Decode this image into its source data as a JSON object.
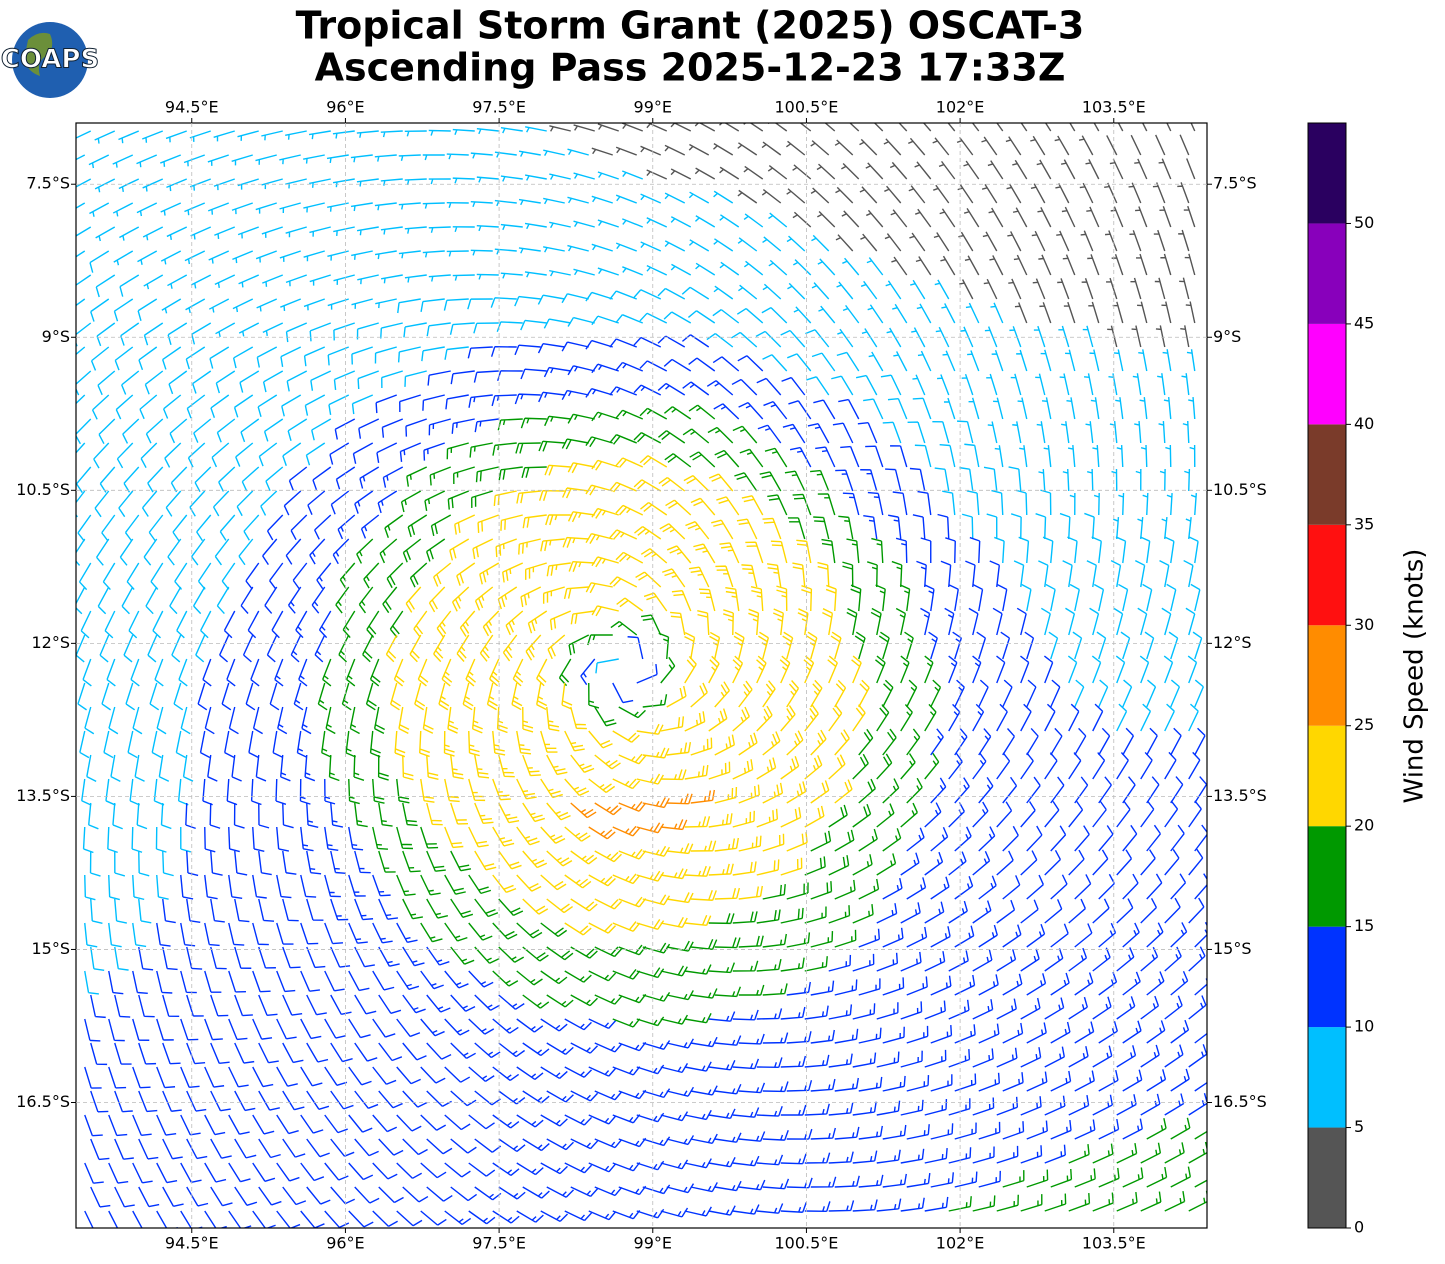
{
  "logo": {
    "text": "COAPS"
  },
  "map": {
    "title": [
      "Tropical Storm Grant (2025) OSCAT-3",
      "Ascending Pass 2025-12-23 17:33Z"
    ],
    "xticks": [
      {
        "value": 94.5,
        "label": "94.5°E"
      },
      {
        "value": 96,
        "label": "96°E"
      },
      {
        "value": 97.5,
        "label": "97.5°E"
      },
      {
        "value": 99,
        "label": "99°E"
      },
      {
        "value": 100.5,
        "label": "100.5°E"
      },
      {
        "value": 102,
        "label": "102°E"
      },
      {
        "value": 103.5,
        "label": "103.5°E"
      }
    ],
    "yticks": [
      {
        "value": -7.5,
        "label": "7.5°S"
      },
      {
        "value": -9,
        "label": "9°S"
      },
      {
        "value": -10.5,
        "label": "10.5°S"
      },
      {
        "value": -12,
        "label": "12°S"
      },
      {
        "value": -13.5,
        "label": "13.5°S"
      },
      {
        "value": -15,
        "label": "15°S"
      },
      {
        "value": -16.5,
        "label": "16.5°S"
      }
    ],
    "xlim": [
      93.37,
      104.41
    ],
    "ylim": [
      -17.73,
      -6.9
    ],
    "grid": true
  },
  "colorbar": {
    "label": "Wind Speed (knots)",
    "lim": [
      0,
      55
    ],
    "ticks": [
      0,
      5,
      10,
      15,
      20,
      25,
      30,
      35,
      40,
      45,
      50
    ],
    "bounds": [
      0,
      5,
      10,
      15,
      20,
      25,
      30,
      35,
      40,
      45,
      50,
      55
    ],
    "colors": [
      "#555555",
      "#00bfff",
      "#0033ff",
      "#009900",
      "#ffd700",
      "#ff8c00",
      "#ff1010",
      "#7a3b2a",
      "#ff00ff",
      "#8800bb",
      "#2a0060"
    ]
  }
}
